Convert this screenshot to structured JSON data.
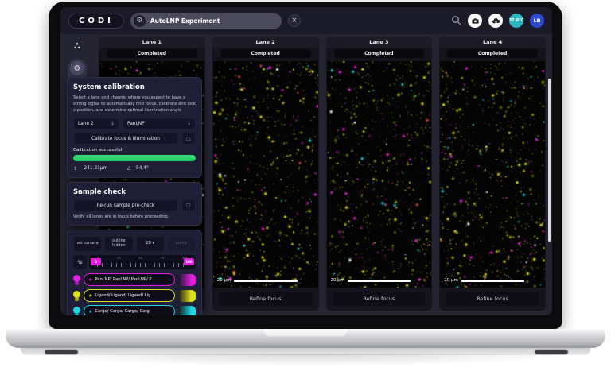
{
  "brand": "CODI",
  "topbar": {
    "tab_label": "AutoLNP Experiment",
    "close_glyph": "×",
    "temperature": "32.8°C",
    "avatar_initials": "LB"
  },
  "sidebar": {
    "help_label": "?"
  },
  "icons": {
    "gear": "⚙",
    "target": "◎",
    "molecule": "∴",
    "updown": "↕",
    "angle": "∠",
    "square": "□"
  },
  "lanes": [
    {
      "name": "Lane 1",
      "status": "Completed",
      "scale_label": "20 μm",
      "refine_label": "Refine focus"
    },
    {
      "name": "Lane 2",
      "status": "Completed",
      "scale_label": "20 μm",
      "refine_label": "Refine focus"
    },
    {
      "name": "Lane 3",
      "status": "Completed",
      "scale_label": "20 μm",
      "refine_label": "Refine focus"
    },
    {
      "name": "Lane 4",
      "status": "Completed",
      "scale_label": "20 μm",
      "refine_label": "Refine focus"
    }
  ],
  "calibration": {
    "title": "System calibration",
    "description": "Select a lane and channel where you expect to have a strong signal to automatically find focus, calibrate and lock z-position, and determine optimal illumination angle",
    "lane_value": "Lane 2",
    "channel_value": "PanLNP",
    "calibrate_label": "Calibrate focus & illumination",
    "status_label": "Calibration successful",
    "progress_pct": 100,
    "z_value": "-241.21μm",
    "angle_value": "54.4°"
  },
  "sample_check": {
    "title": "Sample check",
    "rerun_label": "Re-run sample pre-check",
    "note": "Verify all lanes are in focus before proceeding"
  },
  "viewer_controls": {
    "buttons": [
      {
        "label": "set camera"
      },
      {
        "label": "outline hidden"
      },
      {
        "label": "2D ▾"
      },
      {
        "label": "pump"
      }
    ],
    "percent_label": "%",
    "slider": {
      "low": "0",
      "high": "100",
      "tick_labels": [
        "0",
        "25",
        "50",
        "75",
        "100"
      ]
    },
    "star_glyph": "★",
    "channels": [
      {
        "label": "PanLNP/ PanLNP/ PanLNP/ P",
        "color": "#e01fe0"
      },
      {
        "label": "Ligand/ Ligand/ Ligand/ Lig",
        "color": "#e0e01f"
      },
      {
        "label": "Cargo/ Cargo/ Cargo/ Carg",
        "color": "#1fd4e0"
      }
    ]
  },
  "colors": {
    "accent_green": "#2bd968",
    "magenta": "#e01fe0",
    "yellow": "#e0e01f",
    "cyan": "#1fd4e0",
    "teal_badge": "#2ab5c0",
    "avatar_blue": "#2f49d1"
  },
  "microscopy": {
    "background": "#040404",
    "dot_colors": [
      "#d8d820",
      "#9ca818",
      "#5e7014",
      "#e020d0",
      "#20c8c8",
      "#c84040",
      "#e8e8e8"
    ],
    "dot_weights": [
      0.32,
      0.2,
      0.17,
      0.15,
      0.06,
      0.04,
      0.06
    ],
    "dots_per_lane": 560
  }
}
